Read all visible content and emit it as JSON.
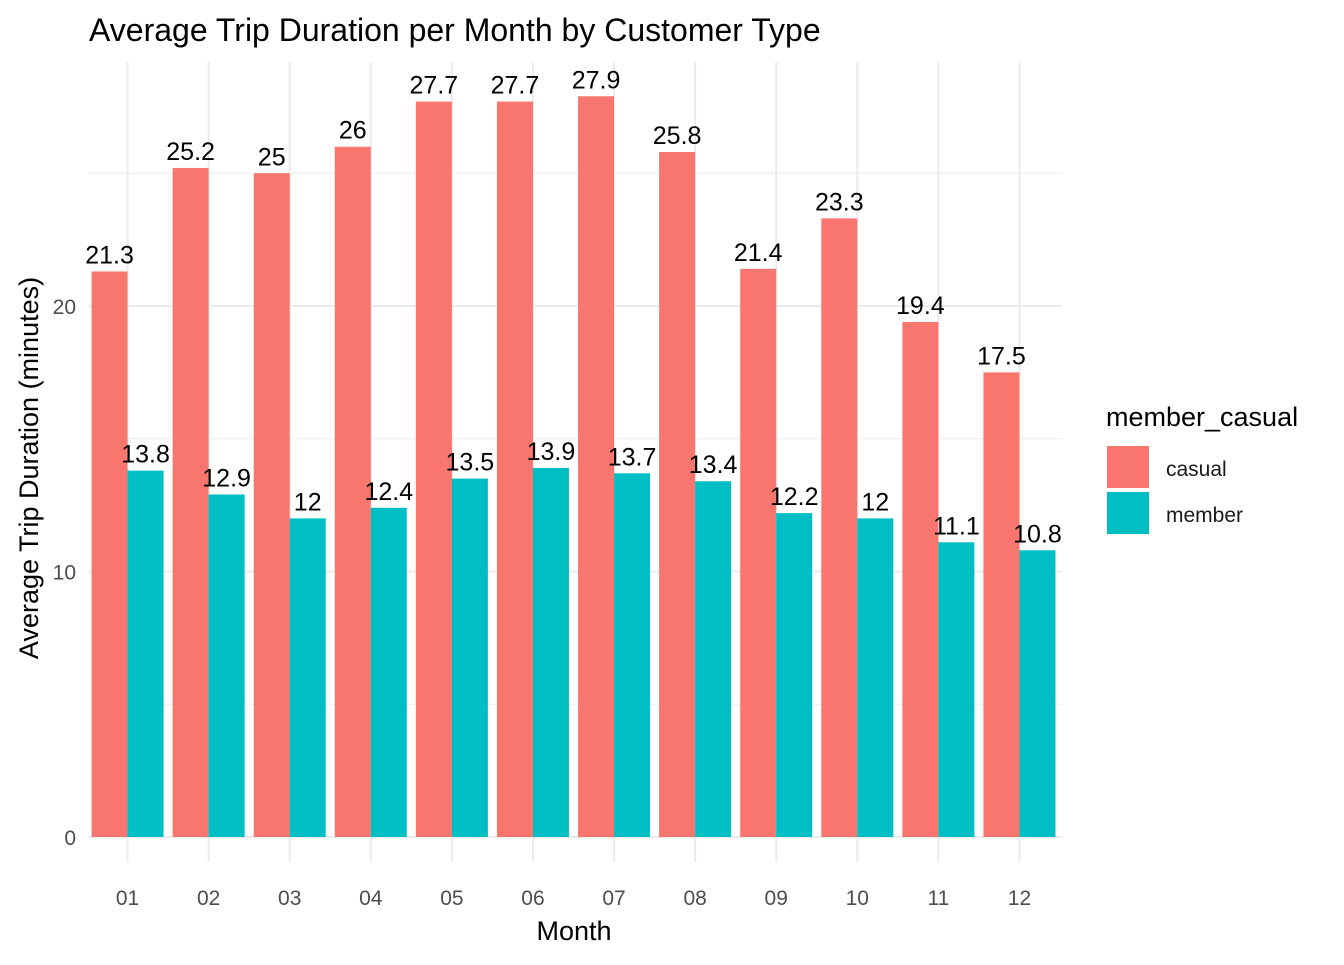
{
  "chart_data": {
    "type": "bar",
    "title": "Average Trip Duration per Month by Customer Type",
    "xlabel": "Month",
    "ylabel": "Average Trip Duration (minutes)",
    "categories": [
      "01",
      "02",
      "03",
      "04",
      "05",
      "06",
      "07",
      "08",
      "09",
      "10",
      "11",
      "12"
    ],
    "series": [
      {
        "name": "casual",
        "color": "#F8766D",
        "values": [
          21.3,
          25.2,
          25,
          26,
          27.7,
          27.7,
          27.9,
          25.8,
          21.4,
          23.3,
          19.4,
          17.5
        ]
      },
      {
        "name": "member",
        "color": "#00BFC4",
        "values": [
          13.8,
          12.9,
          12,
          12.4,
          13.5,
          13.9,
          13.7,
          13.4,
          12.2,
          12,
          11.1,
          10.8
        ]
      }
    ],
    "data_labels": {
      "casual": [
        "21.3",
        "25.2",
        "25",
        "26",
        "27.7",
        "27.7",
        "27.9",
        "25.8",
        "21.4",
        "23.3",
        "19.4",
        "17.5"
      ],
      "member": [
        "13.8",
        "12.9",
        "12",
        "12.4",
        "13.5",
        "13.9",
        "13.7",
        "13.4",
        "12.2",
        "12",
        "11.1",
        "10.8"
      ]
    },
    "ylim": [
      0,
      29.3
    ],
    "y_ticks": [
      0,
      10,
      20
    ],
    "y_tick_labels": [
      "0",
      "10",
      "20"
    ],
    "legend": {
      "title": "member_casual",
      "position": "right"
    },
    "grid": true,
    "grid_color": "#EBEBEB"
  }
}
